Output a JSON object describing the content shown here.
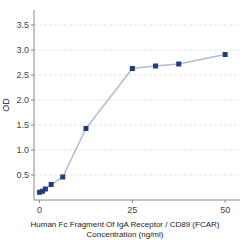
{
  "chart_data": {
    "type": "line",
    "xlabel": "Human Fc Fragment Of IgA Receptor / CD89 (FCAR)\nConcentration (ng/ml)",
    "ylabel": "OD",
    "x": [
      0,
      0.78,
      1.563,
      3.125,
      6.25,
      12.5,
      25,
      31.25,
      37.5,
      50
    ],
    "values": [
      0.155,
      0.175,
      0.22,
      0.31,
      0.46,
      1.43,
      2.63,
      2.68,
      2.72,
      2.91
    ],
    "color": "#1f3d7a",
    "marker": "square",
    "xlim": [
      -1.5,
      54
    ],
    "ylim": [
      0,
      3.8
    ],
    "xticks": [
      0,
      25,
      50
    ],
    "yticks": [
      0.5,
      {
        "value": 1.0,
        "label": "1.0"
      },
      1.5,
      {
        "value": 2.0,
        "label": "2.0"
      },
      2.5,
      {
        "value": 3.0,
        "label": "3.0"
      },
      3.5
    ],
    "grid": true
  }
}
